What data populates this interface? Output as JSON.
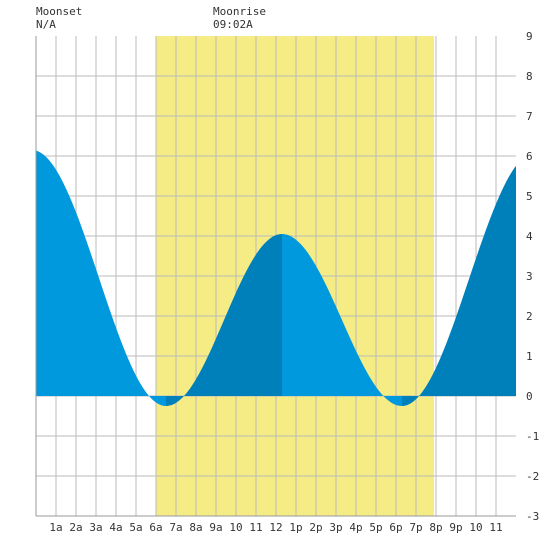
{
  "header": {
    "moonset": {
      "label": "Moonset",
      "value": "N/A"
    },
    "moonrise": {
      "label": "Moonrise",
      "value": "09:02A"
    }
  },
  "colors": {
    "daylight": "#f5ec85",
    "tide_fill": "#0099dd",
    "tide_fill_rising": "#0080bb",
    "grid": "#bbbbbb",
    "axis_text": "#333333"
  },
  "chart_data": {
    "type": "area",
    "x_unit": "hour of day",
    "xlim": [
      0,
      24
    ],
    "ylim": [
      -3,
      9
    ],
    "y_ticks": [
      -3,
      -2,
      -1,
      0,
      1,
      2,
      3,
      4,
      5,
      6,
      7,
      8,
      9
    ],
    "y_tick_labels": [
      "-3",
      "-2",
      "-1",
      "0",
      "1",
      "2",
      "3",
      "4",
      "5",
      "6",
      "7",
      "8",
      "9"
    ],
    "x_ticks": [
      1,
      2,
      3,
      4,
      5,
      6,
      7,
      8,
      9,
      10,
      11,
      12,
      13,
      14,
      15,
      16,
      17,
      18,
      19,
      20,
      21,
      22,
      23
    ],
    "x_tick_labels": [
      "1a",
      "2a",
      "3a",
      "4a",
      "5a",
      "6a",
      "7a",
      "8a",
      "9a",
      "10",
      "11",
      "12",
      "1p",
      "2p",
      "3p",
      "4p",
      "5p",
      "6p",
      "7p",
      "8p",
      "9p",
      "10",
      "11"
    ],
    "daylight": {
      "start": 6.0,
      "end": 19.9
    },
    "grid": true,
    "tide_extremes": [
      {
        "x": -0.2,
        "y": 6.15
      },
      {
        "x": 6.5,
        "y": -0.25
      },
      {
        "x": 12.3,
        "y": 4.05
      },
      {
        "x": 18.3,
        "y": -0.25
      },
      {
        "x": 25.0,
        "y": 6.1
      }
    ],
    "series": [
      {
        "values": [
          {
            "x": 0,
            "y": 6.1
          },
          {
            "x": 1,
            "y": 5.4
          },
          {
            "x": 2,
            "y": 4.2
          },
          {
            "x": 3,
            "y": 3.3
          },
          {
            "x": 4,
            "y": 2.1
          },
          {
            "x": 5,
            "y": 0.8
          },
          {
            "x": 6,
            "y": -0.1
          },
          {
            "x": 6.5,
            "y": -0.25
          },
          {
            "x": 7,
            "y": -0.15
          },
          {
            "x": 8,
            "y": 0.4
          },
          {
            "x": 9,
            "y": 1.4
          },
          {
            "x": 10,
            "y": 2.6
          },
          {
            "x": 11,
            "y": 3.6
          },
          {
            "x": 12.3,
            "y": 4.05
          },
          {
            "x": 13,
            "y": 3.8
          },
          {
            "x": 14,
            "y": 3.1
          },
          {
            "x": 15,
            "y": 2.0
          },
          {
            "x": 16,
            "y": 0.8
          },
          {
            "x": 17,
            "y": 0.1
          },
          {
            "x": 18.3,
            "y": -0.25
          },
          {
            "x": 19,
            "y": -0.05
          },
          {
            "x": 20,
            "y": 0.8
          },
          {
            "x": 21,
            "y": 2.0
          },
          {
            "x": 22,
            "y": 3.3
          },
          {
            "x": 23,
            "y": 4.4
          },
          {
            "x": 24,
            "y": 5.4
          }
        ]
      }
    ]
  }
}
